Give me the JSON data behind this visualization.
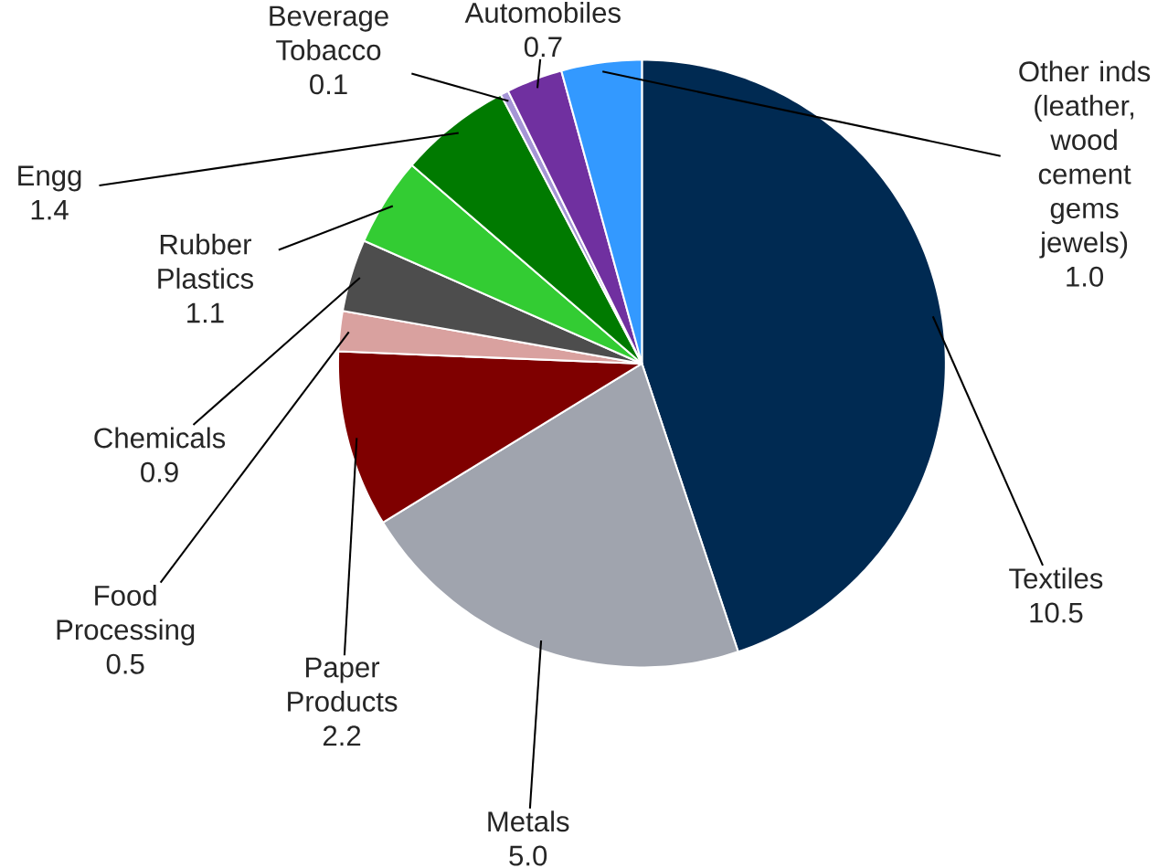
{
  "chart_data": {
    "type": "pie",
    "categories": [
      "Textiles",
      "Metals",
      "Paper Products",
      "Food Processing",
      "Chemicals",
      "Rubber Plastics",
      "Engg",
      "Beverage Tobacco",
      "Automobiles",
      "Other inds (leather, wood cement gems jewels)"
    ],
    "values": [
      10.5,
      5.0,
      2.2,
      0.5,
      0.9,
      1.1,
      1.4,
      0.1,
      0.7,
      1.0
    ],
    "value_labels": [
      "10.5",
      "5.0",
      "2.2",
      "0.5",
      "0.9",
      "1.1",
      "1.4",
      "0.1",
      "0.7",
      "1.0"
    ],
    "colors": [
      "#002a52",
      "#a0a4ae",
      "#7f0000",
      "#d9a19f",
      "#4d4d4d",
      "#33cc33",
      "#007a00",
      "#a595d6",
      "#7030a0",
      "#3399ff"
    ]
  }
}
